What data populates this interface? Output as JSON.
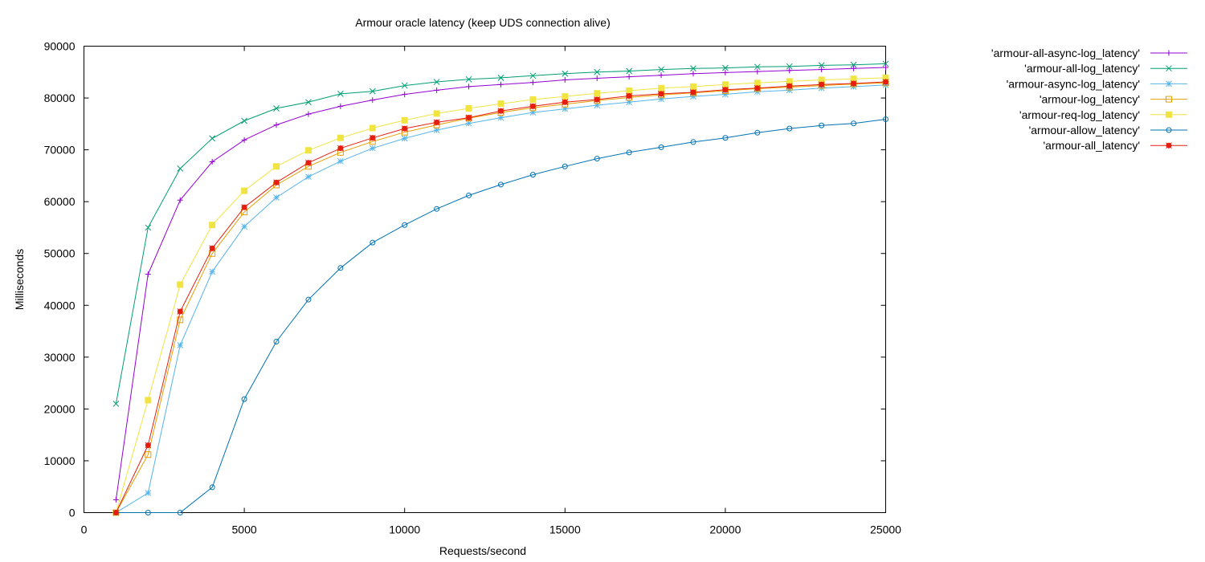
{
  "chart_data": {
    "type": "line",
    "title": "Armour oracle latency (keep UDS connection alive)",
    "xlabel": "Requests/second",
    "ylabel": "Milliseconds",
    "xlim": [
      0,
      25000
    ],
    "ylim": [
      0,
      90000
    ],
    "x_ticks": [
      0,
      5000,
      10000,
      15000,
      20000,
      25000
    ],
    "y_ticks": [
      0,
      10000,
      20000,
      30000,
      40000,
      50000,
      60000,
      70000,
      80000,
      90000
    ],
    "grid": false,
    "legend_position": "outside-top-right",
    "x": [
      1000,
      2000,
      3000,
      4000,
      5000,
      6000,
      7000,
      8000,
      9000,
      10000,
      11000,
      12000,
      13000,
      14000,
      15000,
      16000,
      17000,
      18000,
      19000,
      20000,
      21000,
      22000,
      23000,
      24000,
      25000
    ],
    "series": [
      {
        "name": "'armour-all-async-log_latency'",
        "color": "#9400d3",
        "marker": "plus",
        "values": [
          2500,
          46000,
          60300,
          67700,
          71900,
          74800,
          76900,
          78400,
          79600,
          80700,
          81500,
          82200,
          82600,
          83000,
          83500,
          83800,
          84100,
          84400,
          84700,
          84900,
          85100,
          85300,
          85500,
          85700,
          85900
        ]
      },
      {
        "name": "'armour-all-log_latency'",
        "color": "#009e73",
        "marker": "x",
        "values": [
          21000,
          55000,
          66400,
          72200,
          75600,
          78000,
          79200,
          80800,
          81300,
          82400,
          83100,
          83600,
          83900,
          84300,
          84700,
          85000,
          85200,
          85500,
          85700,
          85800,
          86000,
          86100,
          86300,
          86400,
          86600
        ]
      },
      {
        "name": "'armour-async-log_latency'",
        "color": "#56b4e9",
        "marker": "asterisk",
        "values": [
          0,
          3800,
          32300,
          46500,
          55200,
          60800,
          64800,
          67800,
          70300,
          72200,
          73800,
          75100,
          76200,
          77200,
          77900,
          78600,
          79200,
          79800,
          80300,
          80700,
          81200,
          81500,
          81900,
          82200,
          82500
        ]
      },
      {
        "name": "'armour-log_latency'",
        "color": "#e69f00",
        "marker": "open-square",
        "values": [
          0,
          11200,
          37200,
          50000,
          58000,
          63200,
          66800,
          69500,
          71600,
          73400,
          74800,
          76100,
          77200,
          78100,
          78800,
          79500,
          80100,
          80600,
          81000,
          81400,
          81800,
          82100,
          82400,
          82700,
          82900
        ]
      },
      {
        "name": "'armour-req-log_latency'",
        "color": "#f0e442",
        "marker": "filled-square",
        "values": [
          0,
          21700,
          44000,
          55500,
          62100,
          66800,
          69900,
          72300,
          74200,
          75700,
          77000,
          78000,
          78900,
          79700,
          80300,
          80900,
          81400,
          81900,
          82200,
          82600,
          82900,
          83200,
          83500,
          83700,
          83900
        ]
      },
      {
        "name": "'armour-allow_latency'",
        "color": "#0072b2",
        "marker": "open-circle",
        "values": [
          0,
          0,
          0,
          4900,
          21900,
          33000,
          41100,
          47200,
          52100,
          55500,
          58600,
          61200,
          63300,
          65200,
          66800,
          68300,
          69500,
          70500,
          71500,
          72300,
          73300,
          74100,
          74700,
          75100,
          75900
        ]
      },
      {
        "name": "'armour-all_latency'",
        "color": "#e51e10",
        "marker": "filled-star",
        "values": [
          0,
          13000,
          38800,
          51000,
          58900,
          63700,
          67500,
          70300,
          72300,
          74100,
          75300,
          76200,
          77500,
          78400,
          79200,
          79700,
          80400,
          80800,
          81100,
          81600,
          81900,
          82300,
          82600,
          82800,
          83100
        ]
      }
    ]
  }
}
